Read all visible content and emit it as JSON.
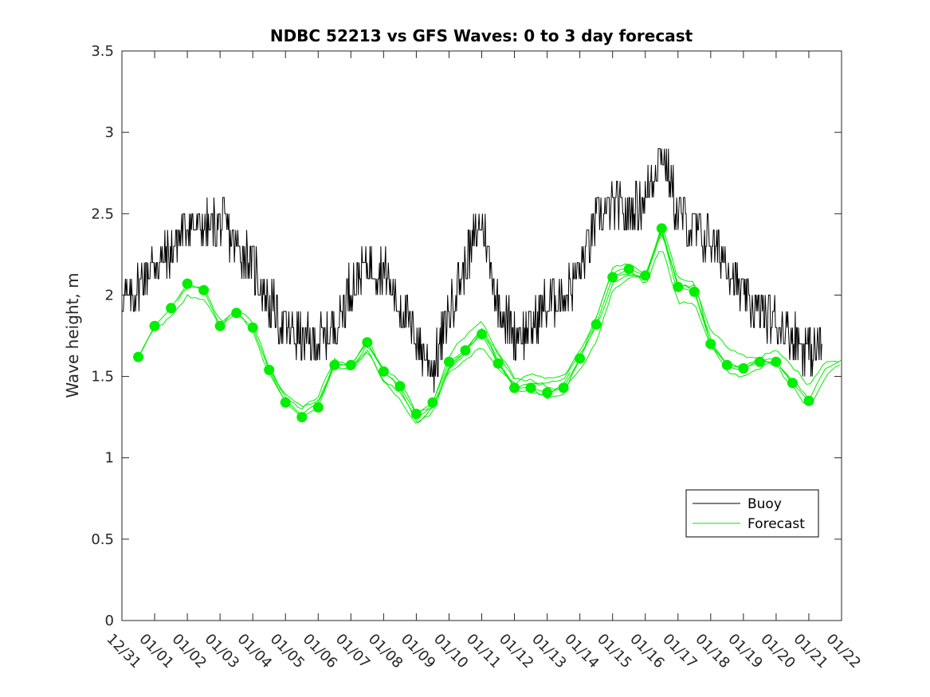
{
  "chart_data": {
    "type": "line",
    "title": "NDBC 52213 vs GFS Waves: 0 to 3 day forecast",
    "xlabel": "",
    "ylabel": "Wave height, m",
    "ylim": [
      0,
      3.5
    ],
    "xlim_days": [
      0,
      22
    ],
    "yticks": [
      0,
      0.5,
      1,
      1.5,
      2,
      2.5,
      3,
      3.5
    ],
    "ytick_labels": [
      "0",
      "0.5",
      "1",
      "1.5",
      "2",
      "2.5",
      "3",
      "3.5"
    ],
    "xtick_labels": [
      "12/31",
      "01/01",
      "01/02",
      "01/03",
      "01/04",
      "01/05",
      "01/06",
      "01/07",
      "01/08",
      "01/09",
      "01/10",
      "01/11",
      "01/12",
      "01/13",
      "01/14",
      "01/15",
      "01/16",
      "01/17",
      "01/18",
      "01/19",
      "01/20",
      "01/21",
      "01/22"
    ],
    "legend": {
      "position": "lower-right",
      "entries": [
        "Buoy",
        "Forecast"
      ]
    },
    "colors": {
      "buoy": "#000000",
      "forecast": "#00ee00"
    },
    "buoy": {
      "name": "Buoy",
      "x": [
        0,
        0.25,
        0.5,
        1,
        1.5,
        2,
        2.5,
        3,
        3.5,
        4,
        4.5,
        5,
        5.5,
        6,
        6.5,
        7,
        7.5,
        8,
        8.5,
        9,
        9.5,
        10,
        10.5,
        11,
        11.5,
        12,
        12.5,
        13,
        13.5,
        14,
        14.5,
        15,
        15.5,
        16,
        16.5,
        17,
        17.5,
        18,
        18.5,
        19,
        19.5,
        20,
        20.5,
        21,
        21.4
      ],
      "y": [
        2.0,
        1.95,
        2.05,
        2.2,
        2.25,
        2.45,
        2.4,
        2.45,
        2.3,
        2.2,
        1.95,
        1.8,
        1.72,
        1.7,
        1.8,
        2.05,
        2.2,
        2.15,
        1.95,
        1.72,
        1.55,
        1.9,
        2.2,
        2.45,
        1.95,
        1.75,
        1.8,
        1.95,
        2.0,
        2.15,
        2.45,
        2.55,
        2.5,
        2.6,
        2.9,
        2.5,
        2.4,
        2.35,
        2.2,
        2.0,
        1.9,
        1.85,
        1.75,
        1.65,
        1.7
      ],
      "noise": 0.15
    },
    "forecast": {
      "name": "Forecast",
      "x": [
        0.5,
        1,
        1.5,
        2,
        2.5,
        3,
        3.5,
        4,
        4.5,
        5,
        5.5,
        6,
        6.5,
        7,
        7.5,
        8,
        8.5,
        9,
        9.5,
        10,
        10.5,
        11,
        11.5,
        12,
        12.5,
        13,
        13.5,
        14,
        14.5,
        15,
        15.5,
        16,
        16.5,
        17,
        17.5,
        18,
        18.5,
        19,
        19.5,
        20,
        20.5,
        21,
        21.5,
        22
      ],
      "y": [
        1.62,
        1.81,
        1.92,
        2.07,
        2.03,
        1.81,
        1.89,
        1.8,
        1.54,
        1.34,
        1.25,
        1.31,
        1.57,
        1.57,
        1.71,
        1.53,
        1.44,
        1.27,
        1.34,
        1.59,
        1.66,
        1.76,
        1.58,
        1.43,
        1.43,
        1.4,
        1.43,
        1.61,
        1.82,
        2.11,
        2.16,
        2.12,
        2.41,
        2.05,
        2.02,
        1.7,
        1.57,
        1.55,
        1.59,
        1.59,
        1.46,
        1.35,
        1.55,
        1.6
      ],
      "run_offsets": [
        -0.05,
        0.0,
        0.04,
        0.08,
        -0.08,
        0.03,
        -0.03
      ],
      "marker_x": [
        0.5,
        1,
        1.5,
        2,
        2.5,
        3,
        3.5,
        4,
        4.5,
        5,
        5.5,
        6,
        6.5,
        7,
        7.5,
        8,
        8.5,
        9,
        9.5,
        10,
        10.5,
        11,
        11.5,
        12,
        12.5,
        13,
        13.5,
        14,
        14.5,
        15,
        15.5,
        16,
        16.5,
        17,
        17.5,
        18,
        18.5,
        19,
        19.5,
        20,
        20.5,
        21
      ],
      "marker_y": [
        1.62,
        1.81,
        1.92,
        2.07,
        2.03,
        1.81,
        1.89,
        1.8,
        1.54,
        1.34,
        1.25,
        1.31,
        1.57,
        1.57,
        1.71,
        1.53,
        1.44,
        1.27,
        1.34,
        1.59,
        1.66,
        1.76,
        1.58,
        1.43,
        1.43,
        1.4,
        1.43,
        1.61,
        1.82,
        2.11,
        2.16,
        2.12,
        2.41,
        2.05,
        2.02,
        1.7,
        1.57,
        1.55,
        1.59,
        1.59,
        1.46,
        1.35
      ]
    }
  }
}
